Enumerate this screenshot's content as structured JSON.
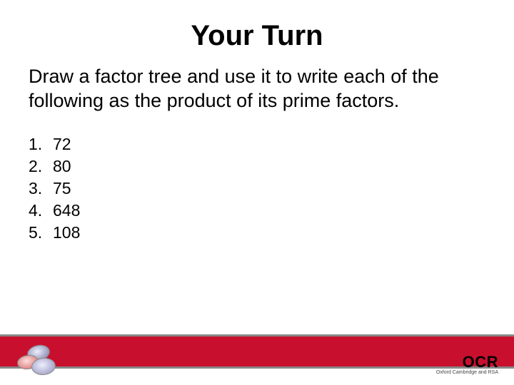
{
  "title": "Your Turn",
  "instruction": "Draw a factor tree and use it to write each of the following as the product of its prime factors.",
  "items": [
    {
      "n": "1.",
      "v": "72"
    },
    {
      "n": "2.",
      "v": "80"
    },
    {
      "n": "3.",
      "v": "75"
    },
    {
      "n": "4.",
      "v": "648"
    },
    {
      "n": "5.",
      "v": "108"
    }
  ],
  "logo": {
    "main": "OCR",
    "sub": "Oxford Cambridge and RSA"
  },
  "colors": {
    "band": "#c8102e",
    "bandBorder": "#888888",
    "text": "#000000",
    "background": "#ffffff"
  },
  "typography": {
    "title_fontsize": 40,
    "body_fontsize": 27,
    "list_fontsize": 23,
    "font_family": "Arial"
  }
}
